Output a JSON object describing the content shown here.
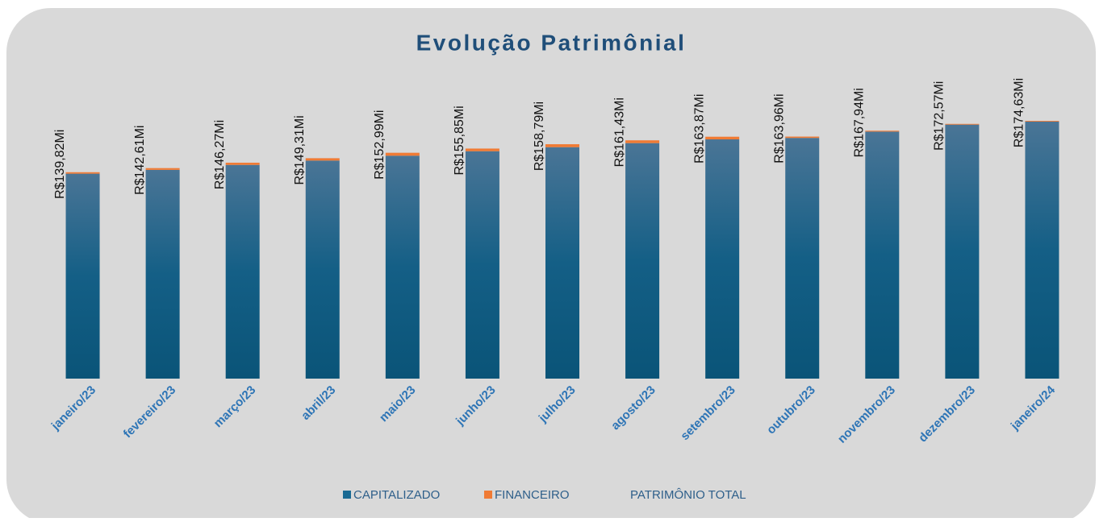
{
  "chart_data": {
    "type": "stacked-bar",
    "title": "Evolução Patrimônial",
    "categories": [
      "janeiro/23",
      "fevereiro/23",
      "março/23",
      "abril/23",
      "maio/23",
      "junho/23",
      "julho/23",
      "agosto/23",
      "setembro/23",
      "outubro/23",
      "novembro/23",
      "dezembro/23",
      "janeiro/24"
    ],
    "series": [
      {
        "name": "CAPITALIZADO",
        "color": "#0f5f86",
        "values": [
          138.82,
          141.41,
          144.77,
          147.71,
          150.99,
          154.05,
          156.79,
          159.53,
          162.07,
          163.06,
          167.34,
          172.07,
          174.13
        ]
      },
      {
        "name": "FINANCEIRO",
        "color": "#f07b35",
        "values": [
          1.0,
          1.2,
          1.5,
          1.6,
          2.0,
          1.8,
          2.0,
          1.9,
          1.8,
          0.9,
          0.6,
          0.5,
          0.5
        ]
      },
      {
        "name": "PATRIMÔNIO TOTAL",
        "color": "none",
        "values": [
          139.82,
          142.61,
          146.27,
          149.31,
          152.99,
          155.85,
          158.79,
          161.43,
          163.87,
          163.96,
          167.94,
          172.57,
          174.63
        ],
        "value_labels": [
          "R$139,82Mi",
          "R$142,61Mi",
          "R$146,27Mi",
          "R$149,31Mi",
          "R$152,99Mi",
          "R$155,85Mi",
          "R$158,79Mi",
          "R$161,43Mi",
          "R$163,87Mi",
          "R$163,96Mi",
          "R$167,94Mi",
          "R$172,57Mi",
          "R$174,63Mi"
        ]
      }
    ]
  }
}
